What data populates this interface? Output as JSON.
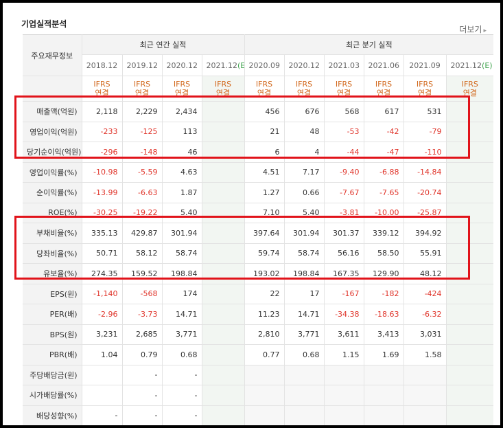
{
  "section": {
    "title": "기업실적분석",
    "more_label": "더보기",
    "more_icon": "chevron-right-icon"
  },
  "header": {
    "row_label": "주요재무정보",
    "annual_group": "최근 연간 실적",
    "quarter_group": "최근 분기 실적",
    "annual_periods": [
      "2018.12",
      "2019.12",
      "2020.12",
      "2021.12"
    ],
    "annual_est_suffix": "(E)",
    "quarter_periods": [
      "2020.09",
      "2020.12",
      "2021.03",
      "2021.06",
      "2021.09",
      "2021.12"
    ],
    "quarter_est_suffix": "(E)",
    "basis_top": "IFRS",
    "basis_bottom": "연결"
  },
  "rows": [
    {
      "label": "매출액(억원)",
      "annual": [
        "2,118",
        "2,229",
        "2,434",
        ""
      ],
      "quarter": [
        "456",
        "676",
        "568",
        "617",
        "531",
        ""
      ]
    },
    {
      "label": "영업이익(억원)",
      "annual": [
        "-233",
        "-125",
        "113",
        ""
      ],
      "quarter": [
        "21",
        "48",
        "-53",
        "-42",
        "-79",
        ""
      ]
    },
    {
      "label": "당기순이익(억원)",
      "annual": [
        "-296",
        "-148",
        "46",
        ""
      ],
      "quarter": [
        "6",
        "4",
        "-44",
        "-47",
        "-110",
        ""
      ]
    },
    {
      "label": "영업이익률(%)",
      "annual": [
        "-10.98",
        "-5.59",
        "4.63",
        ""
      ],
      "quarter": [
        "4.51",
        "7.17",
        "-9.40",
        "-6.88",
        "-14.84",
        ""
      ]
    },
    {
      "label": "순이익률(%)",
      "annual": [
        "-13.99",
        "-6.63",
        "1.87",
        ""
      ],
      "quarter": [
        "1.27",
        "0.66",
        "-7.67",
        "-7.65",
        "-20.74",
        ""
      ]
    },
    {
      "label": "ROE(%)",
      "annual": [
        "-30.25",
        "-19.22",
        "5.40",
        ""
      ],
      "quarter": [
        "7.10",
        "5.40",
        "-3.81",
        "-10.00",
        "-25.87",
        ""
      ]
    },
    {
      "label": "부채비율(%)",
      "annual": [
        "335.13",
        "429.87",
        "301.94",
        ""
      ],
      "quarter": [
        "397.64",
        "301.94",
        "301.37",
        "339.12",
        "394.92",
        ""
      ]
    },
    {
      "label": "당좌비율(%)",
      "annual": [
        "50.71",
        "58.12",
        "58.74",
        ""
      ],
      "quarter": [
        "59.74",
        "58.74",
        "56.16",
        "58.50",
        "55.91",
        ""
      ]
    },
    {
      "label": "유보율(%)",
      "annual": [
        "274.35",
        "159.52",
        "198.84",
        ""
      ],
      "quarter": [
        "193.02",
        "198.84",
        "167.35",
        "129.90",
        "48.12",
        ""
      ]
    },
    {
      "label": "EPS(원)",
      "annual": [
        "-1,140",
        "-568",
        "174",
        ""
      ],
      "quarter": [
        "22",
        "17",
        "-167",
        "-182",
        "-424",
        ""
      ]
    },
    {
      "label": "PER(배)",
      "annual": [
        "-2.96",
        "-3.73",
        "14.71",
        ""
      ],
      "quarter": [
        "11.23",
        "14.71",
        "-34.38",
        "-18.63",
        "-6.32",
        ""
      ]
    },
    {
      "label": "BPS(원)",
      "annual": [
        "3,231",
        "2,685",
        "3,771",
        ""
      ],
      "quarter": [
        "2,810",
        "3,771",
        "3,611",
        "3,413",
        "3,031",
        ""
      ]
    },
    {
      "label": "PBR(배)",
      "annual": [
        "1.04",
        "0.79",
        "0.68",
        ""
      ],
      "quarter": [
        "0.77",
        "0.68",
        "1.15",
        "1.69",
        "1.58",
        ""
      ]
    },
    {
      "label": "주당배당금(원)",
      "annual": [
        "",
        "-",
        "-",
        ""
      ],
      "quarter": [
        "",
        "",
        "",
        "",
        "",
        ""
      ]
    },
    {
      "label": "시가배당률(%)",
      "annual": [
        "",
        "-",
        "-",
        ""
      ],
      "quarter": [
        "",
        "",
        "",
        "",
        "",
        ""
      ]
    },
    {
      "label": "배당성향(%)",
      "annual": [
        "-",
        "-",
        "-",
        ""
      ],
      "quarter": [
        "",
        "",
        "",
        "",
        "",
        ""
      ]
    }
  ],
  "colors": {
    "highlight_box": "#e1131a",
    "negative": "#e0352b",
    "basis": "#d2691e",
    "estimate_mark": "#3fa34d"
  }
}
